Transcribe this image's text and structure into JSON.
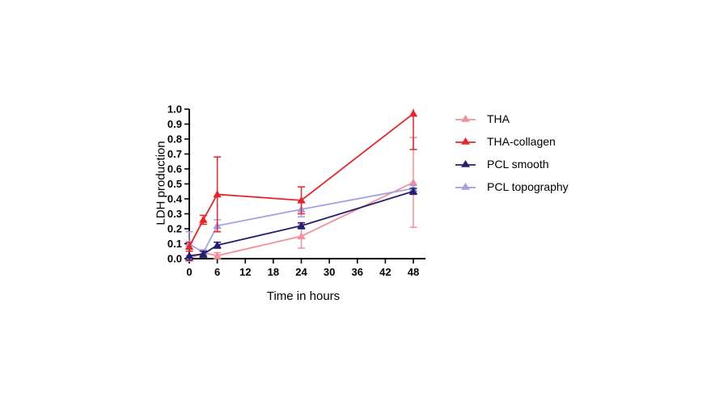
{
  "figure": {
    "background": "#ffffff"
  },
  "chart_data": {
    "type": "line",
    "title": "",
    "xlabel": "Time in hours",
    "ylabel": "LDH production",
    "x": [
      0,
      3,
      6,
      24,
      48
    ],
    "series": [
      {
        "name": "THA",
        "color": "#f2919d",
        "values": [
          0.0,
          0.04,
          0.02,
          0.15,
          0.51
        ],
        "errors": [
          0.01,
          0.02,
          0.02,
          0.08,
          0.3
        ]
      },
      {
        "name": "THA-collagen",
        "color": "#e8242b",
        "values": [
          0.08,
          0.26,
          0.43,
          0.39,
          0.97
        ],
        "errors": [
          0.03,
          0.03,
          0.25,
          0.09,
          0.24
        ]
      },
      {
        "name": "PCL smooth",
        "color": "#221f6e",
        "values": [
          0.02,
          0.03,
          0.09,
          0.22,
          0.45
        ],
        "errors": [
          0.03,
          0.02,
          0.02,
          0.02,
          0.02
        ]
      },
      {
        "name": "PCL topography",
        "color": "#a3a0e3",
        "values": [
          0.1,
          0.04,
          0.22,
          0.33,
          0.47
        ],
        "errors": [
          0.08,
          0.02,
          0.04,
          0.05,
          0.02
        ]
      }
    ],
    "xticks": [
      0,
      6,
      12,
      18,
      24,
      30,
      36,
      42,
      48
    ],
    "yticks": [
      0.0,
      0.1,
      0.2,
      0.3,
      0.4,
      0.5,
      0.6,
      0.7,
      0.8,
      0.9,
      1.0
    ],
    "xlim": [
      0,
      48
    ],
    "ylim": [
      0.0,
      1.0
    ],
    "marker": "triangle",
    "grid": false,
    "legend_position": "right",
    "axis_color": "#000000"
  }
}
